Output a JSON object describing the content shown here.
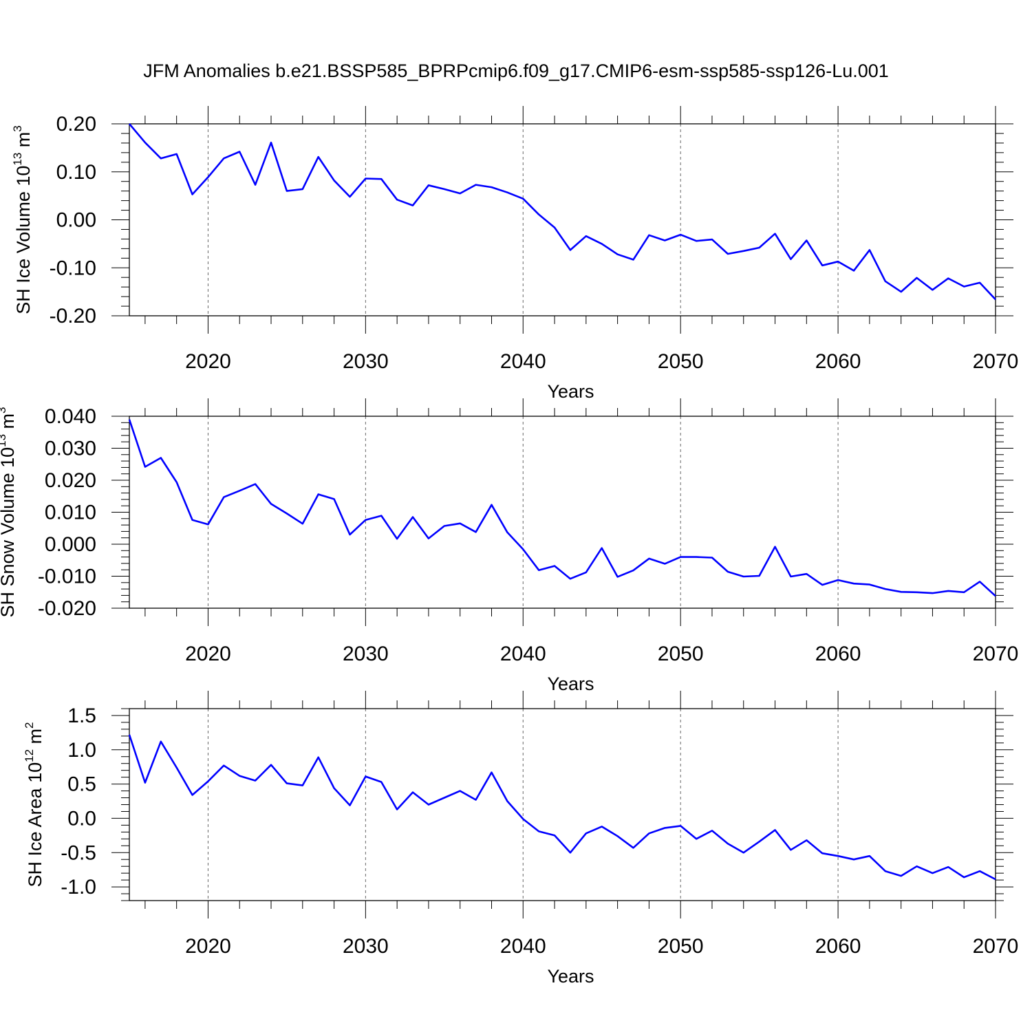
{
  "title": "JFM Anomalies b.e21.BSSP585_BPRPcmip6.f09_g17.CMIP6-esm-ssp585-ssp126-Lu.001",
  "colors": {
    "line": "#0000ff",
    "axis": "#000000",
    "grid": "#000000"
  },
  "chart_data": [
    {
      "type": "line",
      "ylabel": "SH Ice Volume 10",
      "ylabel_exp": "13",
      "ylabel_unit": " m",
      "ylabel_unit_exp": "3",
      "xlabel": "Years",
      "xlim": [
        2015,
        2070
      ],
      "ylim": [
        -0.2,
        0.2
      ],
      "yticks": [
        -0.2,
        -0.1,
        0.0,
        0.1,
        0.2
      ],
      "ytick_labels": [
        "-0.20",
        "-0.10",
        "0.00",
        "0.10",
        "0.20"
      ],
      "xticks": [
        2020,
        2030,
        2040,
        2050,
        2060,
        2070
      ],
      "xtick_labels": [
        "2020",
        "2030",
        "2040",
        "2050",
        "2060",
        "2070"
      ],
      "grid_x": true,
      "x": [
        2015,
        2016,
        2017,
        2018,
        2019,
        2020,
        2021,
        2022,
        2023,
        2024,
        2025,
        2026,
        2027,
        2028,
        2029,
        2030,
        2031,
        2032,
        2033,
        2034,
        2035,
        2036,
        2037,
        2038,
        2039,
        2040,
        2041,
        2042,
        2043,
        2044,
        2045,
        2046,
        2047,
        2048,
        2049,
        2050,
        2051,
        2052,
        2053,
        2054,
        2055,
        2056,
        2057,
        2058,
        2059,
        2060,
        2061,
        2062,
        2063,
        2064,
        2065,
        2066,
        2067,
        2068,
        2069,
        2070
      ],
      "values": [
        0.2,
        0.161,
        0.128,
        0.137,
        0.053,
        0.089,
        0.128,
        0.142,
        0.073,
        0.161,
        0.06,
        0.064,
        0.131,
        0.082,
        0.048,
        0.086,
        0.085,
        0.042,
        0.03,
        0.072,
        0.064,
        0.055,
        0.073,
        0.068,
        0.057,
        0.044,
        0.011,
        -0.016,
        -0.063,
        -0.034,
        -0.05,
        -0.072,
        -0.083,
        -0.032,
        -0.043,
        -0.031,
        -0.044,
        -0.041,
        -0.071,
        -0.065,
        -0.058,
        -0.029,
        -0.082,
        -0.043,
        -0.095,
        -0.087,
        -0.106,
        -0.063,
        -0.128,
        -0.15,
        -0.121,
        -0.146,
        -0.122,
        -0.139,
        -0.131,
        -0.166
      ]
    },
    {
      "type": "line",
      "ylabel": "SH Snow Volume 10",
      "ylabel_exp": "13",
      "ylabel_unit": " m",
      "ylabel_unit_exp": "3",
      "xlabel": "Years",
      "xlim": [
        2015,
        2070
      ],
      "ylim": [
        -0.02,
        0.04
      ],
      "yticks": [
        -0.02,
        -0.01,
        0.0,
        0.01,
        0.02,
        0.03,
        0.04
      ],
      "ytick_labels": [
        "-0.020",
        "-0.010",
        "0.000",
        "0.010",
        "0.020",
        "0.030",
        "0.040"
      ],
      "xticks": [
        2020,
        2030,
        2040,
        2050,
        2060,
        2070
      ],
      "xtick_labels": [
        "2020",
        "2030",
        "2040",
        "2050",
        "2060",
        "2070"
      ],
      "grid_x": true,
      "x": [
        2015,
        2016,
        2017,
        2018,
        2019,
        2020,
        2021,
        2022,
        2023,
        2024,
        2025,
        2026,
        2027,
        2028,
        2029,
        2030,
        2031,
        2032,
        2033,
        2034,
        2035,
        2036,
        2037,
        2038,
        2039,
        2040,
        2041,
        2042,
        2043,
        2044,
        2045,
        2046,
        2047,
        2048,
        2049,
        2050,
        2051,
        2052,
        2053,
        2054,
        2055,
        2056,
        2057,
        2058,
        2059,
        2060,
        2061,
        2062,
        2063,
        2064,
        2065,
        2066,
        2067,
        2068,
        2069,
        2070
      ],
      "values": [
        0.039,
        0.0242,
        0.027,
        0.0194,
        0.0076,
        0.0062,
        0.0147,
        0.0167,
        0.0188,
        0.0126,
        0.0096,
        0.0064,
        0.0156,
        0.0141,
        0.003,
        0.0076,
        0.0089,
        0.0017,
        0.0085,
        0.0018,
        0.0057,
        0.0065,
        0.0038,
        0.0123,
        0.0037,
        -0.0016,
        -0.0081,
        -0.0068,
        -0.0108,
        -0.0088,
        -0.0012,
        -0.0102,
        -0.0082,
        -0.0045,
        -0.0061,
        -0.004,
        -0.004,
        -0.0042,
        -0.0086,
        -0.0101,
        -0.0099,
        -0.0008,
        -0.0101,
        -0.0093,
        -0.0127,
        -0.0112,
        -0.0123,
        -0.0126,
        -0.014,
        -0.0149,
        -0.015,
        -0.0153,
        -0.0146,
        -0.015,
        -0.0117,
        -0.0162
      ]
    },
    {
      "type": "line",
      "ylabel": "SH Ice Area 10",
      "ylabel_exp": "12",
      "ylabel_unit": " m",
      "ylabel_unit_exp": "2",
      "xlabel": "Years",
      "xlim": [
        2015,
        2070
      ],
      "ylim": [
        -1.2,
        1.6
      ],
      "yticks": [
        -1.0,
        -0.5,
        0.0,
        0.5,
        1.0,
        1.5
      ],
      "ytick_labels": [
        "-1.0",
        "-0.5",
        "0.0",
        "0.5",
        "1.0",
        "1.5"
      ],
      "xticks": [
        2020,
        2030,
        2040,
        2050,
        2060,
        2070
      ],
      "xtick_labels": [
        "2020",
        "2030",
        "2040",
        "2050",
        "2060",
        "2070"
      ],
      "grid_x": true,
      "x": [
        2015,
        2016,
        2017,
        2018,
        2019,
        2020,
        2021,
        2022,
        2023,
        2024,
        2025,
        2026,
        2027,
        2028,
        2029,
        2030,
        2031,
        2032,
        2033,
        2034,
        2035,
        2036,
        2037,
        2038,
        2039,
        2040,
        2041,
        2042,
        2043,
        2044,
        2045,
        2046,
        2047,
        2048,
        2049,
        2050,
        2051,
        2052,
        2053,
        2054,
        2055,
        2056,
        2057,
        2058,
        2059,
        2060,
        2061,
        2062,
        2063,
        2064,
        2065,
        2066,
        2067,
        2068,
        2069,
        2070
      ],
      "values": [
        1.22,
        0.52,
        1.12,
        0.74,
        0.34,
        0.54,
        0.77,
        0.62,
        0.55,
        0.78,
        0.51,
        0.48,
        0.89,
        0.44,
        0.19,
        0.61,
        0.53,
        0.13,
        0.38,
        0.2,
        0.3,
        0.4,
        0.27,
        0.67,
        0.25,
        -0.01,
        -0.19,
        -0.25,
        -0.5,
        -0.22,
        -0.12,
        -0.26,
        -0.43,
        -0.22,
        -0.14,
        -0.11,
        -0.3,
        -0.18,
        -0.37,
        -0.5,
        -0.34,
        -0.17,
        -0.46,
        -0.32,
        -0.51,
        -0.55,
        -0.6,
        -0.55,
        -0.77,
        -0.84,
        -0.7,
        -0.8,
        -0.71,
        -0.86,
        -0.77,
        -0.89
      ]
    }
  ]
}
